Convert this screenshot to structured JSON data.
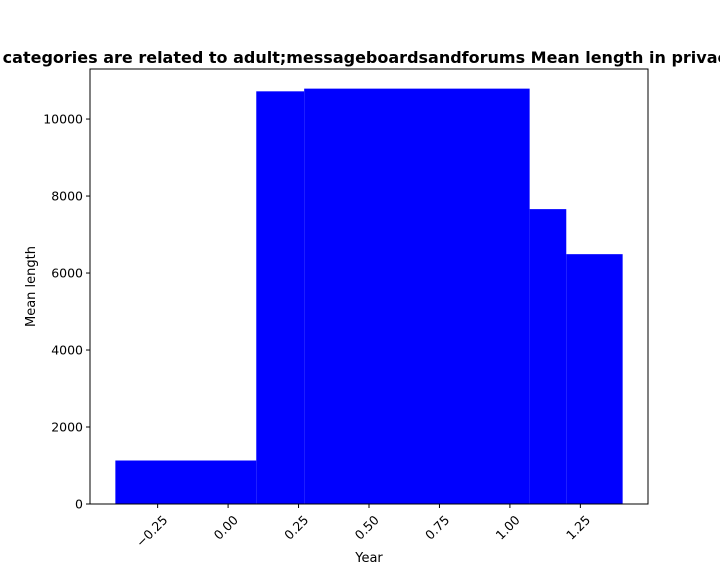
{
  "chart_data": {
    "type": "bar",
    "title": "Which categories are related to adult;messageboardsandforums Mean length in privacy policy",
    "xlabel": "Year",
    "ylabel": "Mean length",
    "xlim": [
      -0.49,
      1.49
    ],
    "ylim": [
      0,
      11300
    ],
    "bar_color": "#0000ff",
    "grid": false,
    "bars": [
      {
        "x_start": -0.4,
        "x_end": 0.1,
        "value": 1130
      },
      {
        "x_start": 0.1,
        "x_end": 0.27,
        "value": 10720
      },
      {
        "x_start": 0.27,
        "x_end": 1.07,
        "value": 10790
      },
      {
        "x_start": 1.07,
        "x_end": 1.2,
        "value": 7660
      },
      {
        "x_start": 1.2,
        "x_end": 1.4,
        "value": 6490
      }
    ],
    "xticks": [
      -0.25,
      0.0,
      0.25,
      0.5,
      0.75,
      1.0,
      1.25
    ],
    "xtick_labels": [
      "−0.25",
      "0.00",
      "0.25",
      "0.50",
      "0.75",
      "1.00",
      "1.25"
    ],
    "yticks": [
      0,
      2000,
      4000,
      6000,
      8000,
      10000
    ],
    "ytick_labels": [
      "0",
      "2000",
      "4000",
      "6000",
      "8000",
      "10000"
    ]
  }
}
